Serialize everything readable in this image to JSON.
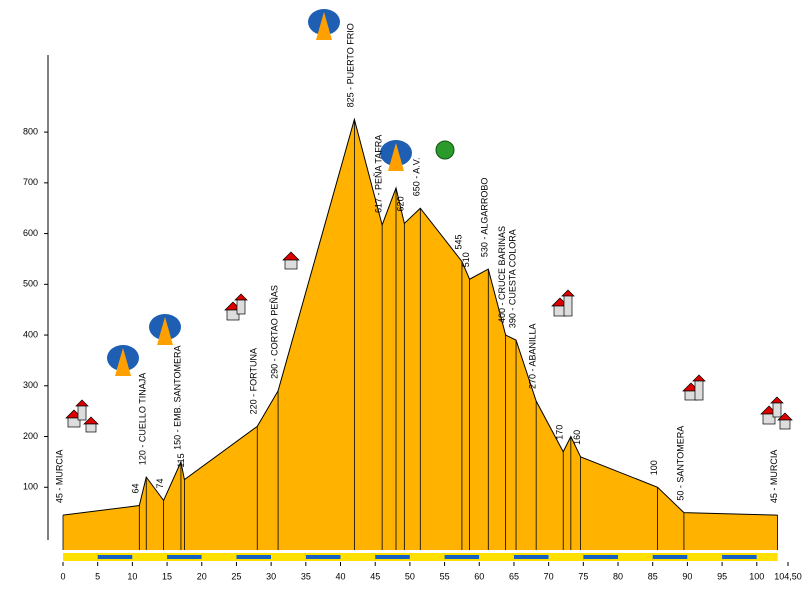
{
  "chart_data": {
    "type": "area",
    "x": [
      0,
      11,
      12,
      14.5,
      17,
      17.5,
      28,
      31,
      42,
      46,
      48,
      49.2,
      51.5,
      57.5,
      58.6,
      61.3,
      63.8,
      65.3,
      68.2,
      72.1,
      73.2,
      74.6,
      85.7,
      89.5,
      103
    ],
    "values": [
      45,
      64,
      120,
      74,
      150,
      115,
      220,
      290,
      825,
      617,
      690,
      620,
      650,
      545,
      510,
      530,
      400,
      390,
      270,
      170,
      200,
      160,
      100,
      50,
      45
    ],
    "value_labels": [
      "45 - MURCIA",
      "64",
      "120 - CUELLO TINAJA",
      "74",
      "150 - EMB. SANTOMERA",
      "115",
      "220 - FORTUNA",
      "290 - CORTAO PEÑAS",
      "825 - PUERTO FRIO",
      "617 - PEÑA TAFRA",
      null,
      "620",
      "650 - A.V.",
      "545",
      "510",
      "530 - ALGARROBO",
      "400 - CRUCE BARINAS",
      "390 - CUESTA COLORA",
      "270 - ABANILLA",
      "170",
      null,
      "160",
      "100",
      "50 - SANTOMERA",
      "45 - MURCIA"
    ],
    "color": "#ffb300",
    "xlim": [
      0,
      104.5
    ],
    "xticks": [
      0,
      5,
      10,
      15,
      20,
      25,
      30,
      35,
      40,
      45,
      50,
      55,
      60,
      65,
      70,
      75,
      80,
      85,
      90,
      95,
      100,
      {
        "value": 104.5,
        "label": "104,50"
      }
    ],
    "ylim": [
      0,
      950
    ],
    "yticks": [
      100,
      200,
      300,
      400,
      500,
      600,
      700,
      800
    ]
  }
}
